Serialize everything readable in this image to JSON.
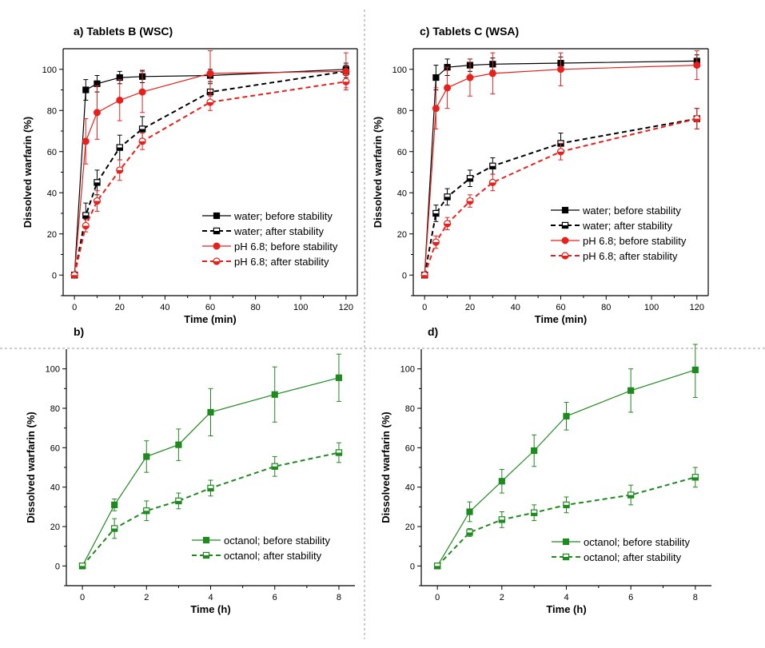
{
  "figure": {
    "colors": {
      "water": "#000000",
      "ph": "#e8201c",
      "octanol": "#1f8a1f",
      "axis": "#000000",
      "divider": "#9a9a9a"
    }
  },
  "chart_data": [
    {
      "id": "a",
      "type": "line",
      "title": "a) Tablets B (WSC)",
      "xlabel": "Time (min)",
      "ylabel": "Dissolved warfarin (%)",
      "xlim": [
        -5,
        125
      ],
      "ylim": [
        -10,
        110
      ],
      "xticks": [
        0,
        20,
        40,
        60,
        80,
        100,
        120
      ],
      "yticks": [
        0,
        20,
        40,
        60,
        80,
        100
      ],
      "legend_position": "bottom-right",
      "series": [
        {
          "name": "water; before stability",
          "color": "#000000",
          "dashed": false,
          "marker": "square-filled",
          "x": [
            0,
            5,
            10,
            20,
            30,
            60,
            120
          ],
          "y": [
            0,
            90,
            93,
            96,
            96.5,
            97,
            100
          ],
          "err": [
            1,
            5,
            4,
            3,
            3,
            3,
            3
          ]
        },
        {
          "name": "water; after stability",
          "color": "#000000",
          "dashed": true,
          "marker": "square-half",
          "x": [
            0,
            5,
            10,
            20,
            30,
            60,
            120
          ],
          "y": [
            0,
            29,
            45,
            62,
            71,
            89,
            99
          ],
          "err": [
            1,
            6,
            6,
            6,
            6,
            4,
            3
          ]
        },
        {
          "name": "pH 6.8; before stability",
          "color": "#e8201c",
          "dashed": false,
          "marker": "circle-filled",
          "x": [
            0,
            5,
            10,
            20,
            30,
            60,
            120
          ],
          "y": [
            0,
            65,
            79,
            85,
            89,
            98,
            99
          ],
          "err": [
            1,
            11,
            13,
            10,
            10,
            11,
            9
          ]
        },
        {
          "name": "pH 6.8; after stability",
          "color": "#e8201c",
          "dashed": true,
          "marker": "circle-half",
          "x": [
            0,
            5,
            10,
            20,
            30,
            60,
            120
          ],
          "y": [
            0,
            24,
            36,
            51,
            65,
            84,
            94
          ],
          "err": [
            1,
            3,
            5,
            5,
            4,
            4,
            3
          ]
        }
      ]
    },
    {
      "id": "c",
      "type": "line",
      "title": "c) Tablets C (WSA)",
      "xlabel": "Time (min)",
      "ylabel": "Dissolved warfarin (%)",
      "xlim": [
        -5,
        125
      ],
      "ylim": [
        -10,
        110
      ],
      "xticks": [
        0,
        20,
        40,
        60,
        80,
        100,
        120
      ],
      "yticks": [
        0,
        20,
        40,
        60,
        80,
        100
      ],
      "legend_position": "bottom-right",
      "series": [
        {
          "name": "water; before stability",
          "color": "#000000",
          "dashed": false,
          "marker": "square-filled",
          "x": [
            0,
            5,
            10,
            20,
            30,
            60,
            120
          ],
          "y": [
            0,
            96,
            101,
            102,
            102.5,
            103,
            104
          ],
          "err": [
            1,
            6,
            4,
            3,
            3,
            3,
            3
          ]
        },
        {
          "name": "water; after stability",
          "color": "#000000",
          "dashed": true,
          "marker": "square-half",
          "x": [
            0,
            5,
            10,
            20,
            30,
            60,
            120
          ],
          "y": [
            0,
            30,
            38,
            47,
            53,
            64,
            76
          ],
          "err": [
            1,
            4,
            4,
            4,
            4,
            5,
            5
          ]
        },
        {
          "name": "pH 6.8; before stability",
          "color": "#e8201c",
          "dashed": false,
          "marker": "circle-filled",
          "x": [
            0,
            5,
            10,
            20,
            30,
            60,
            120
          ],
          "y": [
            0,
            81,
            91,
            96,
            98,
            100,
            102
          ],
          "err": [
            1,
            10,
            10,
            9,
            10,
            8,
            7
          ]
        },
        {
          "name": "pH 6.8; after stability",
          "color": "#e8201c",
          "dashed": true,
          "marker": "circle-half",
          "x": [
            0,
            5,
            10,
            20,
            30,
            60,
            120
          ],
          "y": [
            0,
            16,
            25,
            36,
            45,
            60,
            76
          ],
          "err": [
            1,
            3,
            3,
            3,
            4,
            4,
            5
          ]
        }
      ]
    },
    {
      "id": "b",
      "type": "line",
      "title": "b)",
      "xlabel": "Time (h)",
      "ylabel": "Dissolved warfarin (%)",
      "xlim": [
        -0.5,
        8.5
      ],
      "ylim": [
        -10,
        110
      ],
      "xticks": [
        0,
        2,
        4,
        6,
        8
      ],
      "yticks": [
        0,
        20,
        40,
        60,
        80,
        100
      ],
      "legend_position": "bottom-right",
      "series": [
        {
          "name": "octanol; before stability",
          "color": "#1f8a1f",
          "dashed": false,
          "marker": "square-filled",
          "x": [
            0,
            1,
            2,
            3,
            4,
            6,
            8
          ],
          "y": [
            0,
            31,
            55.5,
            61.5,
            78,
            87,
            95.5
          ],
          "err": [
            1,
            3,
            8,
            8,
            12,
            14,
            12
          ]
        },
        {
          "name": "octanol; after stability",
          "color": "#1f8a1f",
          "dashed": true,
          "marker": "square-half",
          "x": [
            0,
            1,
            2,
            3,
            4,
            6,
            8
          ],
          "y": [
            0,
            19,
            28,
            33,
            39.5,
            50.5,
            57.5
          ],
          "err": [
            1,
            5,
            5,
            4,
            4,
            5,
            5
          ]
        }
      ]
    },
    {
      "id": "d",
      "type": "line",
      "title": "d)",
      "xlabel": "Time (h)",
      "ylabel": "Dissolved warfarin (%)",
      "xlim": [
        -0.5,
        8.5
      ],
      "ylim": [
        -10,
        110
      ],
      "xticks": [
        0,
        2,
        4,
        6,
        8
      ],
      "yticks": [
        0,
        20,
        40,
        60,
        80,
        100
      ],
      "legend_position": "bottom-right",
      "series": [
        {
          "name": "octanol; before stability",
          "color": "#1f8a1f",
          "dashed": false,
          "marker": "square-filled",
          "x": [
            0,
            1,
            2,
            3,
            4,
            6,
            8
          ],
          "y": [
            0,
            27.5,
            43,
            58.5,
            76,
            89,
            99.5
          ],
          "err": [
            1,
            5,
            6,
            8,
            7,
            11,
            14
          ]
        },
        {
          "name": "octanol; after stability",
          "color": "#1f8a1f",
          "dashed": true,
          "marker": "square-half",
          "x": [
            0,
            1,
            2,
            3,
            4,
            6,
            8
          ],
          "y": [
            0,
            17,
            23.5,
            27,
            31,
            36,
            45
          ],
          "err": [
            1,
            2,
            4,
            4,
            4,
            5,
            5
          ]
        }
      ]
    }
  ]
}
